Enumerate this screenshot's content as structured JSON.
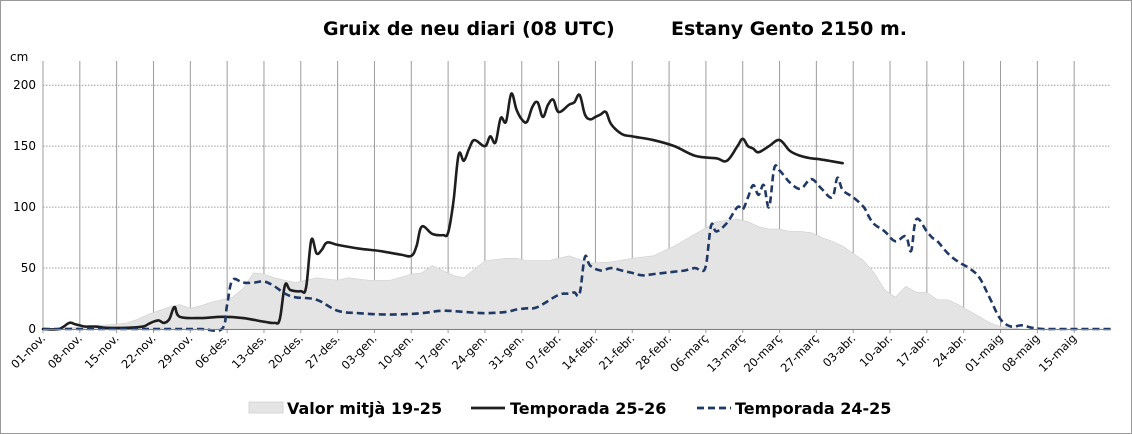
{
  "chart_data": {
    "type": "line",
    "title": "Gruix de neu diari (08 UTC)",
    "subtitle": "Estany Gento 2150 m.",
    "ylabel": "cm",
    "xlabel": "",
    "ylim": [
      0,
      210
    ],
    "yticks": [
      0,
      50,
      100,
      150,
      200
    ],
    "grid": true,
    "legend_position": "bottom",
    "x_tick_labels": [
      "01-nov.",
      "08-nov.",
      "15-nov.",
      "22-nov.",
      "29-nov.",
      "06-des.",
      "13-des.",
      "20-des.",
      "27-des.",
      "03-gen.",
      "10-gen.",
      "17-gen.",
      "24-gen.",
      "31-gen.",
      "07-febr.",
      "14-febr.",
      "21-febr.",
      "28-febr.",
      "06-març",
      "13-març",
      "20-març",
      "27-març",
      "03-abr.",
      "10-abr.",
      "17-abr.",
      "24-abr.",
      "01-maig",
      "08-maig",
      "15-maig"
    ],
    "x_day_range": [
      0,
      203
    ],
    "series": [
      {
        "name": "Valor mitjà 19-25",
        "style": "area",
        "color": "#e4e4e4",
        "x": [
          0,
          4,
          8,
          11,
          14,
          16,
          18,
          20,
          22,
          24,
          26,
          28,
          30,
          32,
          34,
          36,
          38,
          40,
          42,
          44,
          46,
          48,
          52,
          56,
          58,
          62,
          66,
          70,
          72,
          74,
          76,
          78,
          80,
          84,
          88,
          90,
          92,
          96,
          100,
          104,
          108,
          112,
          116,
          120,
          124,
          128,
          132,
          134,
          136,
          138,
          140,
          142,
          144,
          146,
          148,
          150,
          152,
          154,
          156,
          158,
          160,
          162,
          164,
          166,
          168,
          170,
          172,
          174,
          176,
          178,
          180,
          182,
          184,
          186,
          188,
          190,
          192,
          194,
          196,
          198,
          200,
          203
        ],
        "y": [
          0,
          1,
          2,
          3,
          4,
          5,
          8,
          12,
          15,
          18,
          20,
          17,
          19,
          22,
          24,
          26,
          33,
          46,
          45,
          42,
          40,
          38,
          42,
          40,
          42,
          40,
          40,
          45,
          46,
          52,
          48,
          44,
          42,
          56,
          58,
          58,
          56,
          56,
          60,
          54,
          55,
          58,
          60,
          68,
          78,
          88,
          90,
          88,
          84,
          82,
          82,
          80,
          80,
          79,
          75,
          72,
          68,
          62,
          56,
          46,
          32,
          26,
          35,
          30,
          30,
          24,
          24,
          20,
          15,
          10,
          5,
          2,
          1,
          0,
          0,
          0,
          0,
          0,
          0,
          0,
          0,
          0
        ]
      },
      {
        "name": "Temporada 25-26",
        "style": "solid",
        "color": "#1e1e1e",
        "x": [
          0,
          3,
          5,
          6,
          7,
          8,
          10,
          12,
          16,
          19,
          20,
          21,
          22,
          23,
          24,
          25,
          26,
          30,
          34,
          38,
          42,
          44,
          45,
          46,
          47,
          49,
          50,
          51,
          52,
          53,
          54,
          56,
          60,
          64,
          68,
          70,
          71,
          72,
          74,
          76,
          77,
          78,
          79,
          80,
          81,
          82,
          84,
          85,
          86,
          87,
          88,
          89,
          90,
          91,
          92,
          93,
          94,
          95,
          96,
          97,
          98,
          100,
          101,
          102,
          103,
          104,
          105,
          106,
          107,
          108,
          110,
          112,
          116,
          120,
          124,
          128,
          130,
          132,
          133,
          134,
          135,
          136,
          138,
          140,
          142,
          144,
          146,
          148,
          152
        ],
        "y": [
          0,
          0,
          5,
          4,
          3,
          2,
          2,
          1,
          1,
          2,
          4,
          6,
          7,
          5,
          8,
          18,
          10,
          9,
          10,
          9,
          6,
          5,
          8,
          36,
          32,
          31,
          34,
          73,
          62,
          65,
          71,
          69,
          66,
          64,
          61,
          60,
          68,
          84,
          78,
          77,
          79,
          104,
          143,
          138,
          148,
          155,
          150,
          158,
          153,
          173,
          170,
          193,
          180,
          172,
          170,
          182,
          186,
          174,
          184,
          188,
          178,
          184,
          186,
          192,
          176,
          172,
          174,
          176,
          178,
          168,
          160,
          158,
          155,
          150,
          142,
          140,
          138,
          150,
          156,
          150,
          148,
          145,
          150,
          155,
          146,
          142,
          140,
          139,
          136
        ]
      },
      {
        "name": "Temporada 24-25",
        "style": "dashed",
        "color": "#1f3864",
        "x": [
          0,
          8,
          16,
          24,
          30,
          34,
          35,
          36,
          38,
          40,
          42,
          44,
          46,
          48,
          52,
          56,
          60,
          64,
          68,
          72,
          76,
          80,
          84,
          88,
          90,
          92,
          94,
          98,
          100,
          101,
          102,
          103,
          104,
          106,
          108,
          110,
          112,
          114,
          116,
          118,
          120,
          122,
          124,
          125,
          126,
          127,
          128,
          130,
          132,
          133,
          134,
          135,
          136,
          137,
          138,
          139,
          140,
          141,
          142,
          144,
          146,
          148,
          150,
          151,
          152,
          154,
          156,
          157,
          158,
          160,
          162,
          164,
          165,
          166,
          168,
          169,
          170,
          172,
          174,
          176,
          178,
          180,
          182,
          184,
          186,
          188,
          190,
          192,
          194,
          196,
          198,
          200,
          203
        ],
        "y": [
          0,
          0,
          0,
          0,
          0,
          0,
          20,
          40,
          38,
          38,
          39,
          35,
          29,
          26,
          24,
          15,
          13,
          12,
          12,
          13,
          15,
          14,
          13,
          14,
          16,
          17,
          18,
          28,
          29,
          30,
          29,
          59,
          52,
          48,
          50,
          48,
          46,
          44,
          45,
          46,
          47,
          48,
          50,
          48,
          52,
          85,
          80,
          87,
          100,
          98,
          108,
          118,
          110,
          118,
          100,
          132,
          130,
          125,
          120,
          115,
          123,
          115,
          108,
          124,
          114,
          108,
          100,
          92,
          86,
          80,
          72,
          76,
          64,
          90,
          80,
          75,
          72,
          62,
          55,
          50,
          42,
          25,
          8,
          2,
          3,
          1,
          0,
          0,
          0,
          0,
          0,
          0,
          0
        ]
      }
    ]
  }
}
